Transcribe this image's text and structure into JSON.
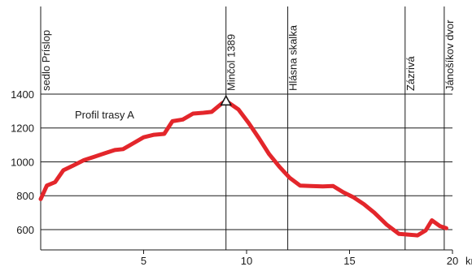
{
  "chart_data": {
    "type": "line",
    "title": "Profil trasy A",
    "xlabel": "km",
    "ylabel": "",
    "xlim": [
      0,
      20
    ],
    "ylim": [
      480,
      1400
    ],
    "x_ticks": [
      5,
      10,
      15,
      20
    ],
    "x_tick_labels": [
      "5",
      "10",
      "15",
      "20"
    ],
    "y_ticks": [
      600,
      800,
      1000,
      1200,
      1400
    ],
    "y_tick_labels": [
      "600",
      "800",
      "1000",
      "1200",
      "1400"
    ],
    "grid": "horizontal",
    "line_color": "#e3262b",
    "series": [
      {
        "name": "",
        "x": [
          0,
          0.3,
          0.7,
          1.1,
          1.6,
          2.1,
          2.6,
          3.1,
          3.6,
          4.0,
          4.5,
          5.0,
          5.5,
          6.0,
          6.4,
          6.9,
          7.4,
          7.9,
          8.3,
          8.8,
          9.0,
          9.6,
          10.1,
          10.6,
          11.1,
          11.6,
          12.1,
          12.6,
          13.1,
          13.7,
          14.2,
          14.7,
          15.2,
          15.7,
          16.2,
          16.8,
          17.4,
          17.9,
          18.3,
          18.7,
          19.0,
          19.4,
          19.7
        ],
        "values": [
          780,
          860,
          880,
          950,
          980,
          1010,
          1030,
          1050,
          1070,
          1075,
          1110,
          1145,
          1160,
          1165,
          1240,
          1250,
          1285,
          1290,
          1295,
          1345,
          1360,
          1310,
          1230,
          1140,
          1045,
          970,
          905,
          860,
          857,
          855,
          857,
          820,
          790,
          750,
          700,
          630,
          575,
          570,
          566,
          595,
          655,
          620,
          608
        ]
      }
    ],
    "vertical_markers": [
      {
        "x": 0,
        "label": "sedlo Príslop"
      },
      {
        "x": 9.0,
        "label": "Minčol 1389"
      },
      {
        "x": 12.0,
        "label": "Hlásna skalka"
      },
      {
        "x": 17.7,
        "label": "Zázrivá"
      },
      {
        "x": 19.6,
        "label": "Jánošíkov dvor"
      }
    ],
    "peak_marker": {
      "x": 9.0,
      "value": 1360
    }
  }
}
